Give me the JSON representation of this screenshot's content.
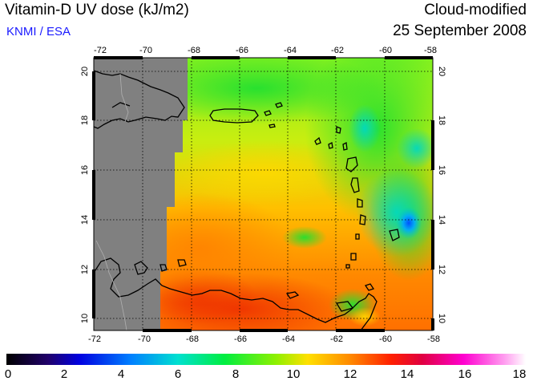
{
  "header": {
    "title": "Vitamin-D UV dose (kJ/m2)",
    "credit": "KNMI / ESA",
    "mode": "Cloud-modified",
    "date": "25 September 2008"
  },
  "map": {
    "lon_ticks": [
      "-72",
      "-70",
      "-68",
      "-66",
      "-64",
      "-62",
      "-60",
      "-58"
    ],
    "lat_ticks": [
      "20",
      "18",
      "16",
      "14",
      "12",
      "10"
    ],
    "lon_range": [
      -72,
      -58
    ],
    "lat_range": [
      9.5,
      20.5
    ],
    "no_data_color": "#808080",
    "grid": "dotted"
  },
  "colorbar": {
    "labels": [
      "0",
      "2",
      "4",
      "6",
      "8",
      "10",
      "12",
      "14",
      "16",
      "18"
    ],
    "range": [
      0,
      18
    ]
  },
  "colors": {
    "credit": "#1a1aff",
    "no_data": "#808080"
  }
}
